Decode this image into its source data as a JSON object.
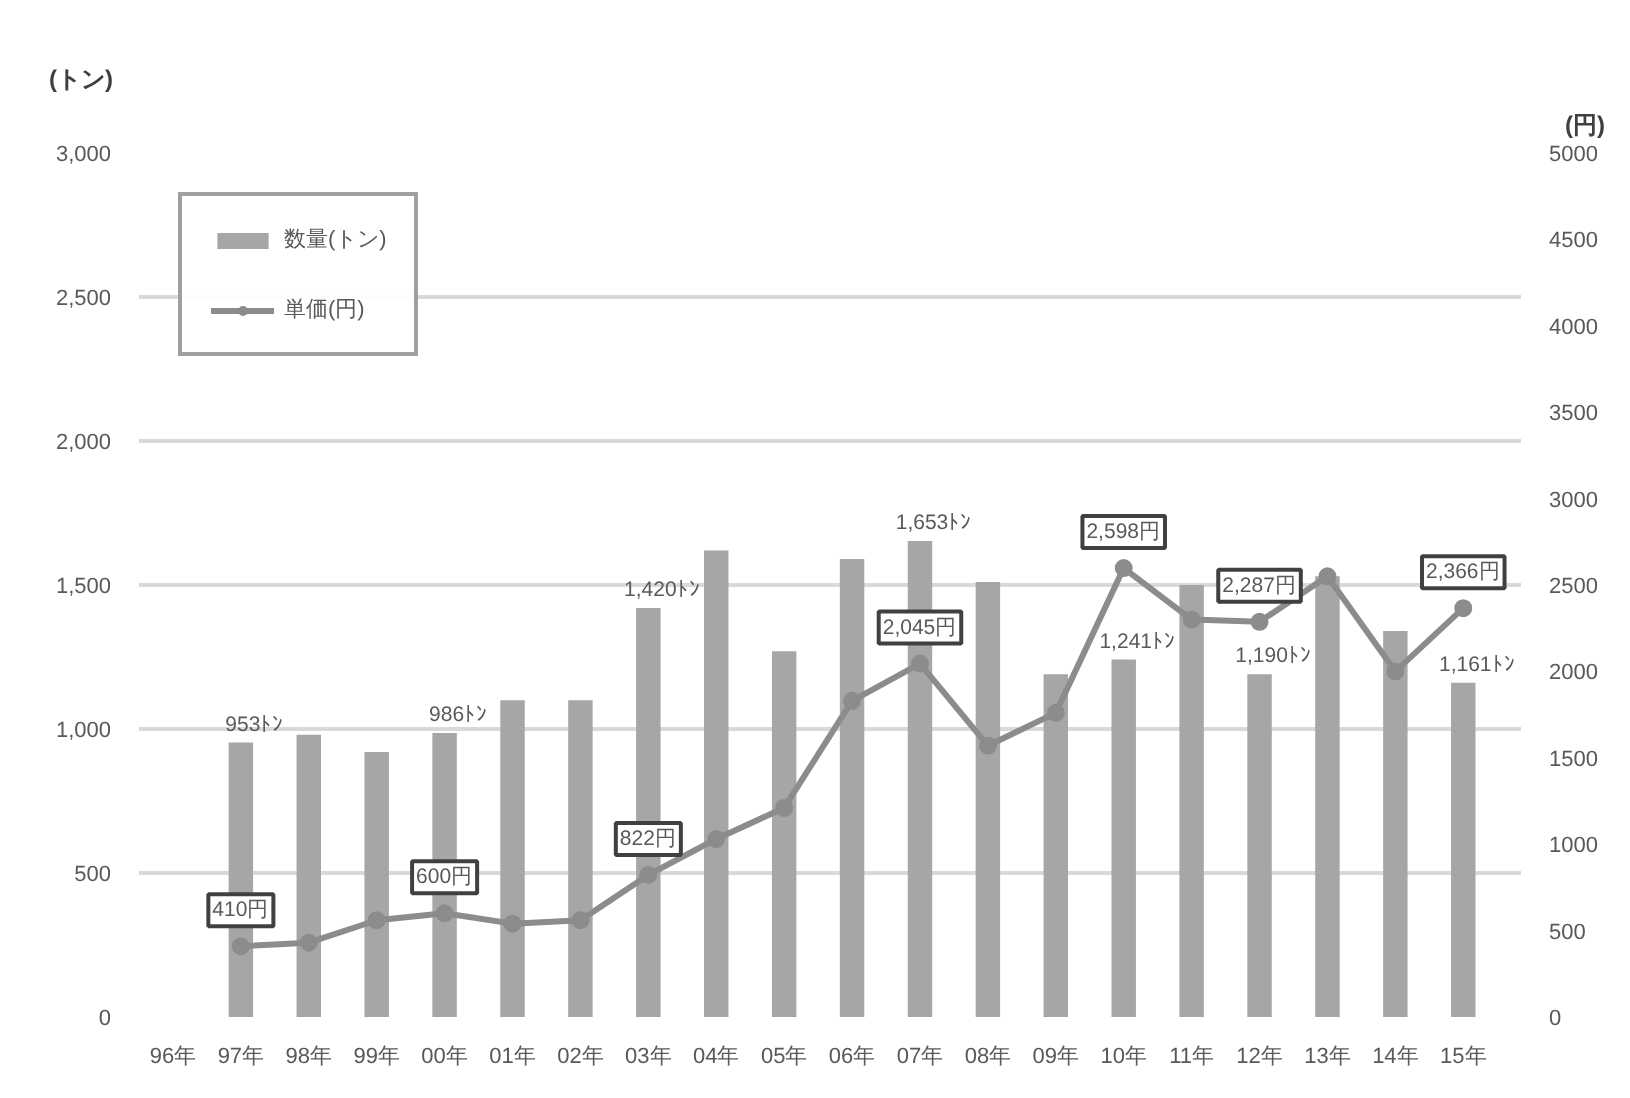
{
  "chart_data": {
    "type": "bar",
    "ylabel": "(トン)",
    "y2label": "(円)",
    "categories": [
      "96年",
      "97年",
      "98年",
      "99年",
      "00年",
      "01年",
      "02年",
      "03年",
      "04年",
      "05年",
      "06年",
      "07年",
      "08年",
      "09年",
      "10年",
      "11年",
      "12年",
      "13年",
      "14年",
      "15年"
    ],
    "series": [
      {
        "name": "数量(トン)",
        "color": "#a6a6a6",
        "values": [
          null,
          953,
          980,
          920,
          986,
          1100,
          1100,
          1420,
          1620,
          1270,
          1590,
          1653,
          1510,
          1190,
          1241,
          1500,
          1190,
          1530,
          1340,
          1161
        ],
        "value_labels": [
          null,
          "953ﾄﾝ",
          null,
          null,
          "986ﾄﾝ",
          null,
          null,
          "1,420ﾄﾝ",
          null,
          null,
          null,
          "1,653ﾄﾝ",
          null,
          null,
          "1,241ﾄﾝ",
          null,
          "1,190ﾄﾝ",
          null,
          null,
          "1,161ﾄﾝ"
        ]
      },
      {
        "name": "単価(円)",
        "type": "line",
        "axis": "y2",
        "color": "#8c8c8c",
        "marker": "circle",
        "values": [
          null,
          410,
          430,
          560,
          600,
          540,
          560,
          822,
          1030,
          1210,
          1830,
          2045,
          1570,
          1760,
          2598,
          2300,
          2287,
          2550,
          2000,
          2366
        ],
        "value_labels": [
          null,
          "410円",
          null,
          null,
          "600円",
          null,
          null,
          "822円",
          null,
          null,
          null,
          "2,045円",
          null,
          null,
          "2,598円",
          null,
          "2,287円",
          null,
          null,
          "2,366円"
        ]
      }
    ],
    "ylim": [
      0,
      3000
    ],
    "yticks": [
      0,
      500,
      {
        "value": 1000,
        "label": "1,000"
      },
      {
        "value": 1500,
        "label": "1,500"
      },
      {
        "value": 2000,
        "label": "2,000"
      },
      {
        "value": 2500,
        "label": "2,500"
      },
      {
        "value": 3000,
        "label": "3,000"
      }
    ],
    "y2lim": [
      0,
      5000
    ],
    "y2ticks": [
      0,
      500,
      1000,
      1500,
      2000,
      2500,
      3000,
      3500,
      4000,
      4500,
      5000
    ],
    "grid": "y",
    "legend": "top left"
  }
}
